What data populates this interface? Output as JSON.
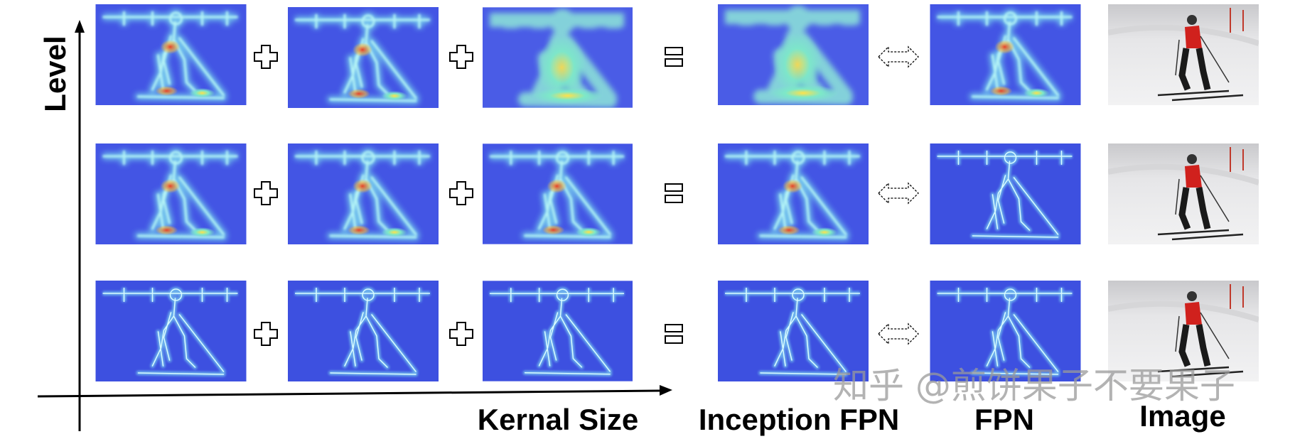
{
  "axes": {
    "y_label": "Level",
    "x_label": "Kernal Size"
  },
  "columns": [
    "Inception FPN",
    "FPN",
    "Image"
  ],
  "watermark": "知乎 @煎饼果子不要果子"
}
